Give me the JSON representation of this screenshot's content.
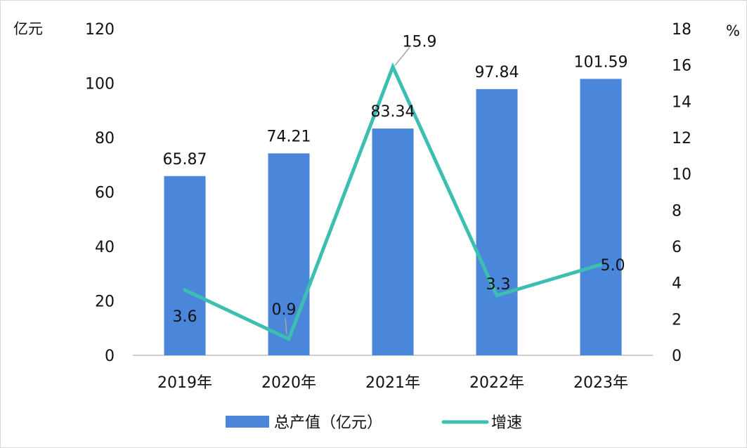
{
  "chart_data": {
    "type": "bar",
    "categories": [
      "2019年",
      "2020年",
      "2021年",
      "2022年",
      "2023年"
    ],
    "y_left_unit": "亿元",
    "y_right_unit": "%",
    "y_left_ticks": [
      "0",
      "20",
      "40",
      "60",
      "80",
      "100",
      "120"
    ],
    "y_right_ticks": [
      "0",
      "2",
      "4",
      "6",
      "8",
      "10",
      "12",
      "14",
      "16",
      "18"
    ],
    "ylim_left": [
      0,
      120
    ],
    "ylim_right": [
      0,
      18
    ],
    "grid": false,
    "legend_position": "bottom",
    "series": [
      {
        "name": "总产值（亿元）",
        "kind": "bar",
        "axis": "left",
        "color": "#4a86d9",
        "values": [
          65.87,
          74.21,
          83.34,
          97.84,
          101.59
        ],
        "labels": [
          "65.87",
          "74.21",
          "83.34",
          "97.84",
          "101.59"
        ]
      },
      {
        "name": "增速",
        "kind": "line",
        "axis": "right",
        "color": "#3cbfb0",
        "values": [
          3.6,
          0.9,
          15.9,
          3.3,
          5.0
        ],
        "labels": [
          "3.6",
          "0.9",
          "15.9",
          "3.3",
          "5.0"
        ]
      }
    ]
  }
}
